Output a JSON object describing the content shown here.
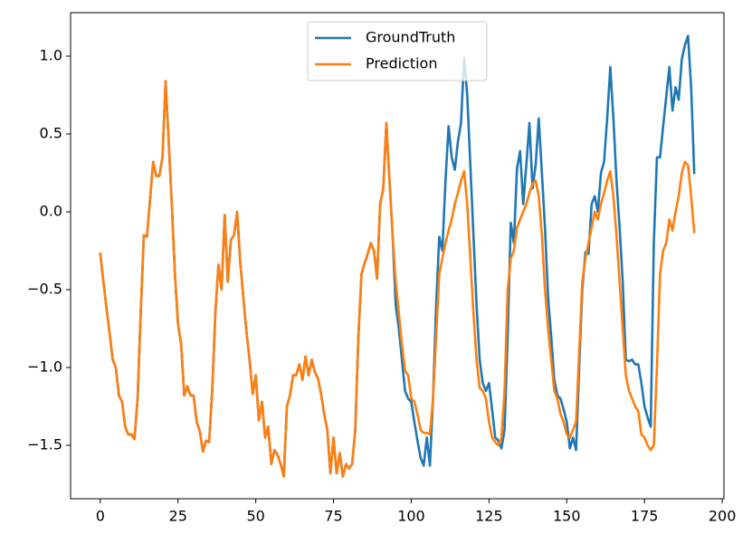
{
  "chart_data": {
    "type": "line",
    "x": [
      0,
      1,
      2,
      3,
      4,
      5,
      6,
      7,
      8,
      9,
      10,
      11,
      12,
      13,
      14,
      15,
      16,
      17,
      18,
      19,
      20,
      21,
      22,
      23,
      24,
      25,
      26,
      27,
      28,
      29,
      30,
      31,
      32,
      33,
      34,
      35,
      36,
      37,
      38,
      39,
      40,
      41,
      42,
      43,
      44,
      45,
      46,
      47,
      48,
      49,
      50,
      51,
      52,
      53,
      54,
      55,
      56,
      57,
      58,
      59,
      60,
      61,
      62,
      63,
      64,
      65,
      66,
      67,
      68,
      69,
      70,
      71,
      72,
      73,
      74,
      75,
      76,
      77,
      78,
      79,
      80,
      81,
      82,
      83,
      84,
      85,
      86,
      87,
      88,
      89,
      90,
      91,
      92,
      93,
      94,
      95,
      96,
      97,
      98,
      99,
      100,
      101,
      102,
      103,
      104,
      105,
      106,
      107,
      108,
      109,
      110,
      111,
      112,
      113,
      114,
      115,
      116,
      117,
      118,
      119,
      120,
      121,
      122,
      123,
      124,
      125,
      126,
      127,
      128,
      129,
      130,
      131,
      132,
      133,
      134,
      135,
      136,
      137,
      138,
      139,
      140,
      141,
      142,
      143,
      144,
      145,
      146,
      147,
      148,
      149,
      150,
      151,
      152,
      153,
      154,
      155,
      156,
      157,
      158,
      159,
      160,
      161,
      162,
      163,
      164,
      165,
      166,
      167,
      168,
      169,
      170,
      171,
      172,
      173,
      174,
      175,
      176,
      177,
      178,
      179,
      180,
      181,
      182,
      183,
      184,
      185,
      186,
      187,
      188,
      189,
      190,
      191
    ],
    "series": [
      {
        "name": "GroundTruth",
        "color": "#1f77b4",
        "values": [
          -0.27,
          -0.45,
          -0.62,
          -0.78,
          -0.95,
          -1.0,
          -1.18,
          -1.22,
          -1.38,
          -1.43,
          -1.43,
          -1.46,
          -1.2,
          -0.65,
          -0.15,
          -0.16,
          0.08,
          0.32,
          0.23,
          0.23,
          0.35,
          0.84,
          0.45,
          0.05,
          -0.4,
          -0.72,
          -0.85,
          -1.18,
          -1.12,
          -1.18,
          -1.18,
          -1.35,
          -1.41,
          -1.54,
          -1.47,
          -1.48,
          -1.15,
          -0.65,
          -0.34,
          -0.5,
          -0.02,
          -0.45,
          -0.18,
          -0.15,
          0.0,
          -0.32,
          -0.55,
          -0.77,
          -0.95,
          -1.17,
          -1.05,
          -1.34,
          -1.22,
          -1.45,
          -1.38,
          -1.62,
          -1.53,
          -1.56,
          -1.62,
          -1.7,
          -1.25,
          -1.18,
          -1.05,
          -1.05,
          -0.98,
          -1.08,
          -0.93,
          -1.05,
          -0.95,
          -1.03,
          -1.07,
          -1.17,
          -1.3,
          -1.4,
          -1.68,
          -1.45,
          -1.68,
          -1.55,
          -1.7,
          -1.62,
          -1.65,
          -1.62,
          -1.4,
          -0.8,
          -0.4,
          -0.33,
          -0.27,
          -0.2,
          -0.25,
          -0.43,
          0.05,
          0.15,
          0.57,
          0.2,
          -0.15,
          -0.6,
          -0.75,
          -0.95,
          -1.15,
          -1.2,
          -1.22,
          -1.35,
          -1.47,
          -1.58,
          -1.63,
          -1.45,
          -1.63,
          -1.2,
          -0.6,
          -0.16,
          -0.25,
          0.2,
          0.55,
          0.35,
          0.27,
          0.45,
          0.57,
          0.99,
          0.75,
          0.3,
          -0.15,
          -0.6,
          -0.95,
          -1.1,
          -1.15,
          -1.1,
          -1.27,
          -1.45,
          -1.47,
          -1.52,
          -1.4,
          -0.8,
          -0.07,
          -0.2,
          0.28,
          0.39,
          0.05,
          0.3,
          0.57,
          0.15,
          0.3,
          0.6,
          0.25,
          -0.1,
          -0.55,
          -0.8,
          -1.08,
          -1.18,
          -1.2,
          -1.27,
          -1.35,
          -1.52,
          -1.45,
          -1.53,
          -1.0,
          -0.5,
          -0.26,
          -0.27,
          0.05,
          0.1,
          0.0,
          0.25,
          0.32,
          0.6,
          0.93,
          0.6,
          0.2,
          -0.1,
          -0.45,
          -0.95,
          -0.96,
          -0.95,
          -0.98,
          -0.98,
          -1.1,
          -1.25,
          -1.32,
          -1.38,
          -0.2,
          0.35,
          0.35,
          0.55,
          0.74,
          0.93,
          0.65,
          0.8,
          0.72,
          0.98,
          1.07,
          1.13,
          0.8,
          0.25
        ]
      },
      {
        "name": "Prediction",
        "color": "#ff7f0e",
        "values": [
          -0.27,
          -0.45,
          -0.62,
          -0.78,
          -0.95,
          -1.0,
          -1.18,
          -1.22,
          -1.38,
          -1.43,
          -1.43,
          -1.46,
          -1.2,
          -0.65,
          -0.15,
          -0.16,
          0.08,
          0.32,
          0.23,
          0.23,
          0.35,
          0.84,
          0.45,
          0.05,
          -0.4,
          -0.72,
          -0.85,
          -1.18,
          -1.12,
          -1.18,
          -1.18,
          -1.35,
          -1.41,
          -1.54,
          -1.47,
          -1.48,
          -1.15,
          -0.65,
          -0.34,
          -0.5,
          -0.02,
          -0.45,
          -0.18,
          -0.15,
          0.0,
          -0.32,
          -0.55,
          -0.77,
          -0.95,
          -1.17,
          -1.05,
          -1.34,
          -1.22,
          -1.45,
          -1.38,
          -1.62,
          -1.53,
          -1.56,
          -1.62,
          -1.7,
          -1.25,
          -1.18,
          -1.05,
          -1.05,
          -0.98,
          -1.08,
          -0.93,
          -1.05,
          -0.95,
          -1.03,
          -1.07,
          -1.17,
          -1.3,
          -1.4,
          -1.68,
          -1.45,
          -1.68,
          -1.55,
          -1.7,
          -1.62,
          -1.65,
          -1.62,
          -1.4,
          -0.8,
          -0.4,
          -0.33,
          -0.27,
          -0.2,
          -0.25,
          -0.43,
          0.05,
          0.15,
          0.57,
          0.2,
          -0.15,
          -0.45,
          -0.65,
          -0.85,
          -1.02,
          -1.05,
          -1.2,
          -1.22,
          -1.3,
          -1.4,
          -1.42,
          -1.42,
          -1.43,
          -1.2,
          -0.8,
          -0.4,
          -0.3,
          -0.2,
          -0.12,
          -0.05,
          0.05,
          0.12,
          0.2,
          0.26,
          0.05,
          -0.3,
          -0.65,
          -0.95,
          -1.13,
          -1.15,
          -1.2,
          -1.35,
          -1.45,
          -1.48,
          -1.5,
          -1.45,
          -1.15,
          -0.5,
          -0.3,
          -0.25,
          -0.1,
          -0.05,
          0.0,
          0.05,
          0.12,
          0.18,
          0.2,
          0.1,
          -0.15,
          -0.5,
          -0.75,
          -0.95,
          -1.15,
          -1.2,
          -1.3,
          -1.35,
          -1.43,
          -1.45,
          -1.4,
          -1.35,
          -0.9,
          -0.45,
          -0.3,
          -0.2,
          -0.1,
          0.0,
          -0.05,
          0.05,
          0.12,
          0.2,
          0.26,
          0.1,
          -0.15,
          -0.45,
          -0.75,
          -1.05,
          -1.15,
          -1.2,
          -1.25,
          -1.28,
          -1.43,
          -1.45,
          -1.5,
          -1.53,
          -1.5,
          -1.0,
          -0.4,
          -0.25,
          -0.2,
          -0.05,
          -0.12,
          0.0,
          0.1,
          0.25,
          0.32,
          0.3,
          0.1,
          -0.13
        ]
      }
    ],
    "xlim": [
      -9.55,
      200.55
    ],
    "xticks": [
      0,
      25,
      50,
      75,
      100,
      125,
      150,
      175,
      200
    ],
    "ylim": [
      -1.843,
      1.279
    ],
    "yticks": [
      {
        "value": -1.5,
        "label": "−1.5"
      },
      {
        "value": -1.0,
        "label": "−1.0"
      },
      {
        "value": -0.5,
        "label": "−0.5"
      },
      {
        "value": 0.0,
        "label": "0.0"
      },
      {
        "value": 0.5,
        "label": "0.5"
      },
      {
        "value": 1.0,
        "label": "1.0"
      }
    ],
    "grid": false,
    "legend": "upper center"
  }
}
